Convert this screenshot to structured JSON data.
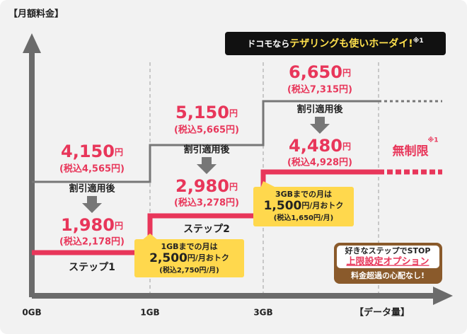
{
  "axis": {
    "y_label": "【月額料金】",
    "x_label": "【データ量】",
    "x_ticks": [
      "0GB",
      "1GB",
      "3GB"
    ]
  },
  "banner": {
    "prefix": "ドコモなら",
    "highlight": "テザリングも使いホーダイ!",
    "note": "※1"
  },
  "currency": "円",
  "steps": [
    {
      "price": "4,150",
      "price_tax": "(税込4,565円)",
      "discount_label": "割引適用後",
      "discounted": "1,980",
      "discounted_tax": "(税込2,178円)"
    },
    {
      "price": "5,150",
      "price_tax": "(税込5,665円)",
      "discount_label": "割引適用後",
      "discounted": "2,980",
      "discounted_tax": "(税込3,278円)"
    },
    {
      "price": "6,650",
      "price_tax": "(税込7,315円)",
      "discount_label": "割引適用後",
      "discounted": "4,480",
      "discounted_tax": "(税込4,928円)"
    }
  ],
  "step_labels": [
    "ステップ1",
    "ステップ2"
  ],
  "unlimited": {
    "label": "無制限",
    "note": "※1"
  },
  "callouts": [
    {
      "line1": "1GBまでの月は",
      "amount": "2,500",
      "unit": "円/月おトク",
      "tax": "(税込2,750円/月)"
    },
    {
      "line1": "3GBまでの月は",
      "amount": "1,500",
      "unit": "円/月おトク",
      "tax": "(税込1,650円/月)"
    }
  ],
  "option": {
    "line1": "好きなステップでSTOP",
    "name": "上限設定オプション",
    "line3": "料金超過の心配なし!"
  }
}
